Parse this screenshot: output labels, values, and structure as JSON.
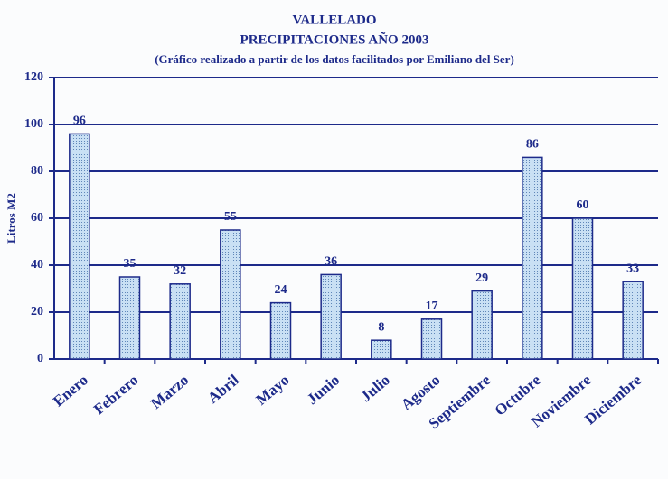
{
  "chart_data": {
    "type": "bar",
    "title": "VALLELADO",
    "subtitle": "PRECIPITACIONES AÑO 2003",
    "caption": "(Gráfico realizado a partir de los datos facilitados por Emiliano del Ser)",
    "y_label": "Litros M2",
    "categories": [
      "Enero",
      "Febrero",
      "Marzo",
      "Abril",
      "Mayo",
      "Junio",
      "Julio",
      "Agosto",
      "Septiembre",
      "Octubre",
      "Noviembre",
      "Diciembre"
    ],
    "values": [
      96,
      35,
      32,
      55,
      24,
      36,
      8,
      17,
      29,
      86,
      60,
      33
    ],
    "color": "#bcd8f0",
    "ylim": [
      0,
      120
    ],
    "yticks": [
      0,
      20,
      40,
      60,
      80,
      100,
      120
    ],
    "grid": true
  }
}
